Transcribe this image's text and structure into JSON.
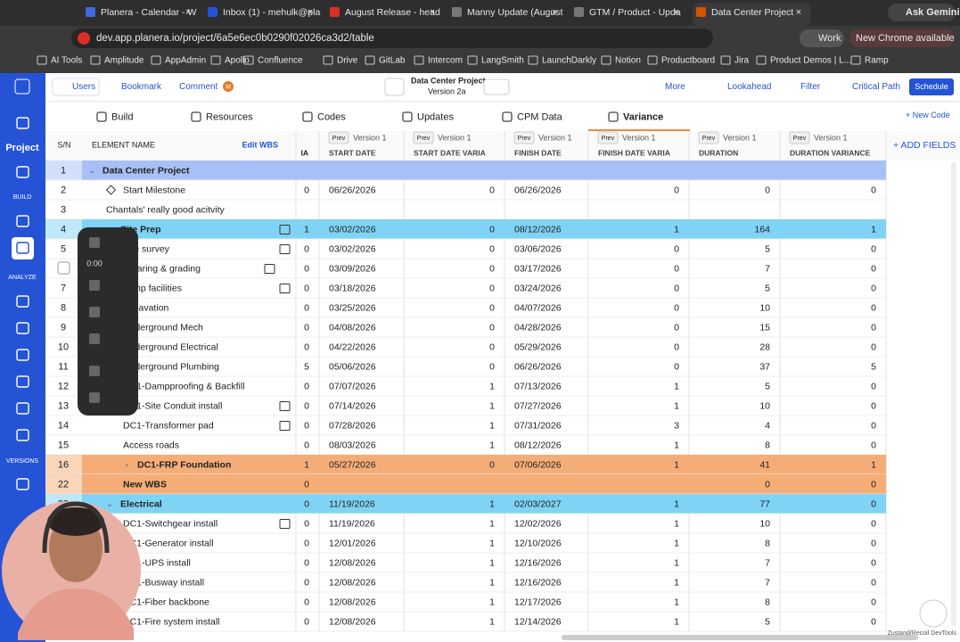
{
  "browser": {
    "tabs": [
      "Planera - Calendar - W",
      "Inbox (1) - mehulk@pla",
      "August Release - head",
      "Manny Update (August",
      "GTM / Product - Upda",
      "Data Center Project"
    ],
    "ask": "Ask Gemini",
    "url": "dev.app.planera.io/project/6a5e6ec0b0290f02026ca3d2/table",
    "profile": "Work",
    "update": "New Chrome available",
    "bookmarks": [
      "AI Tools",
      "Amplitude",
      "AppAdmin",
      "Apollo",
      "Confluence",
      "Drive",
      "GitLab",
      "Intercom",
      "LangSmith",
      "LaunchDarkly",
      "Notion",
      "Productboard",
      "Jira",
      "Product Demos | L...",
      "Ramp"
    ]
  },
  "app": {
    "toolbar": {
      "users": "Users",
      "bookmark": "Bookmark",
      "comment": "Comment",
      "avatar": "M",
      "project": "Data Center Project",
      "version": "Version 2a",
      "more": "More",
      "lookahead": "Lookahead",
      "filter": "Filter",
      "critical_path": "Critical Path",
      "schedule": "Schedule"
    },
    "nav": [
      "Build",
      "Resources",
      "Codes",
      "Updates",
      "CPM Data",
      "Variance"
    ],
    "new_code": "+ New Code",
    "sidebar": {
      "project": "Project",
      "build": "BUILD",
      "analyze": "ANALYZE",
      "versions": "VERSIONS"
    },
    "recorder_time": "0:00",
    "devtools": "Zustand/Recoil DevTools"
  },
  "table": {
    "sn_header": "S/N",
    "name_header": "ELEMENT NAME",
    "edit_wbs": "Edit WBS",
    "partial_column": "IA",
    "columns": [
      {
        "prev": "Prev",
        "version": "Version 1",
        "label": "START DATE"
      },
      {
        "prev": "Prev",
        "version": "Version 1",
        "label": "START DATE VARIA"
      },
      {
        "prev": "Prev",
        "version": "Version 1",
        "label": "FINISH DATE"
      },
      {
        "prev": "Prev",
        "version": "Version 1",
        "label": "FINISH DATE VARIA"
      },
      {
        "prev": "Prev",
        "version": "Version 1",
        "label": "DURATION"
      },
      {
        "prev": "Prev",
        "version": "Version 1",
        "label": "DURATION VARIANCE"
      }
    ],
    "add_fields": "+ ADD FIELDS",
    "rows": [
      {
        "sn": 1,
        "name": "Data Center Project",
        "cells": [
          null,
          null,
          null,
          null,
          null,
          null,
          null
        ],
        "color": "#a7c0f6"
      },
      {
        "sn": 2,
        "name": "Start Milestone",
        "cells": [
          0,
          "06/26/2026",
          0,
          "06/26/2026",
          0,
          0,
          0
        ]
      },
      {
        "sn": 3,
        "name": "Chantals' really good acitvity",
        "cells": [
          null,
          null,
          null,
          null,
          null,
          null,
          null
        ]
      },
      {
        "sn": 4,
        "name": "Site Prep",
        "cells": [
          1,
          "03/02/2026",
          0,
          "08/12/2026",
          1,
          164,
          1
        ],
        "color": "#7fd3f5"
      },
      {
        "sn": 5,
        "name": "Site survey",
        "cells": [
          0,
          "03/02/2026",
          0,
          "03/06/2026",
          0,
          5,
          0
        ]
      },
      {
        "sn": 6,
        "name": "Clearing & grading",
        "cells": [
          0,
          "03/09/2026",
          0,
          "03/17/2026",
          0,
          7,
          0
        ]
      },
      {
        "sn": 7,
        "name": "Temp facilities",
        "cells": [
          0,
          "03/18/2026",
          0,
          "03/24/2026",
          0,
          5,
          0
        ]
      },
      {
        "sn": 8,
        "name": "Excavation",
        "cells": [
          0,
          "03/25/2026",
          0,
          "04/07/2026",
          0,
          10,
          0
        ]
      },
      {
        "sn": 9,
        "name": "Underground Mech",
        "cells": [
          0,
          "04/08/2026",
          0,
          "04/28/2026",
          0,
          15,
          0
        ]
      },
      {
        "sn": 10,
        "name": "Underground Electrical",
        "cells": [
          0,
          "04/22/2026",
          0,
          "05/29/2026",
          0,
          28,
          0
        ]
      },
      {
        "sn": 11,
        "name": "Underground Plumbing",
        "cells": [
          5,
          "05/06/2026",
          0,
          "06/26/2026",
          0,
          37,
          5
        ]
      },
      {
        "sn": 12,
        "name": "DC1-Dampproofing & Backfill",
        "cells": [
          0,
          "07/07/2026",
          1,
          "07/13/2026",
          1,
          5,
          0
        ]
      },
      {
        "sn": 13,
        "name": "DC1-Site Conduit install",
        "cells": [
          0,
          "07/14/2026",
          1,
          "07/27/2026",
          1,
          10,
          0
        ]
      },
      {
        "sn": 14,
        "name": "DC1-Transformer pad",
        "cells": [
          0,
          "07/28/2026",
          1,
          "07/31/2026",
          3,
          4,
          0
        ]
      },
      {
        "sn": 15,
        "name": "Access roads",
        "cells": [
          0,
          "08/03/2026",
          1,
          "08/12/2026",
          1,
          8,
          0
        ]
      },
      {
        "sn": 16,
        "name": "DC1-FRP Foundation",
        "cells": [
          1,
          "05/27/2026",
          0,
          "07/06/2026",
          1,
          41,
          1
        ],
        "color": "#f5ad78"
      },
      {
        "sn": 22,
        "name": "New WBS",
        "cells": [
          0,
          null,
          null,
          null,
          null,
          0,
          0
        ],
        "color": "#f5ad78"
      },
      {
        "sn": 23,
        "name": "Electrical",
        "cells": [
          0,
          "11/19/2026",
          1,
          "02/03/2027",
          1,
          77,
          0
        ],
        "color": "#7fd3f5"
      },
      {
        "sn": null,
        "name": "DC1-Switchgear install",
        "cells": [
          0,
          "11/19/2026",
          1,
          "12/02/2026",
          1,
          10,
          0
        ]
      },
      {
        "sn": null,
        "name": "DC1-Generator install",
        "cells": [
          0,
          "12/01/2026",
          1,
          "12/10/2026",
          1,
          8,
          0
        ]
      },
      {
        "sn": null,
        "name": "DC1-UPS install",
        "cells": [
          0,
          "12/08/2026",
          1,
          "12/16/2026",
          1,
          7,
          0
        ]
      },
      {
        "sn": null,
        "name": "DC1-Busway install",
        "cells": [
          0,
          "12/08/2026",
          1,
          "12/16/2026",
          1,
          7,
          0
        ]
      },
      {
        "sn": null,
        "name": "DC1-Fiber backbone",
        "cells": [
          0,
          "12/08/2026",
          1,
          "12/17/2026",
          1,
          8,
          0
        ]
      },
      {
        "sn": null,
        "name": "DC1-Fire system install",
        "cells": [
          0,
          "12/08/2026",
          1,
          "12/14/2026",
          1,
          5,
          0
        ]
      }
    ]
  }
}
